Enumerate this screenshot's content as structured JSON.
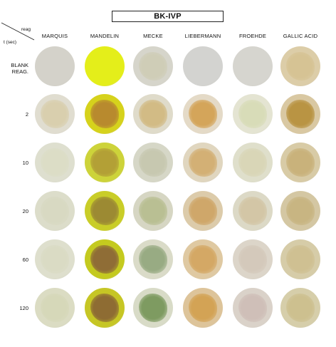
{
  "title": "BK-IVP",
  "corner": {
    "reagent_label": "reag",
    "time_label": "t (sec)"
  },
  "columns": [
    "MARQUIS",
    "MANDELIN",
    "MECKE",
    "LIEBERMANN",
    "FROEHDE",
    "GALLIC ACID"
  ],
  "rows": [
    {
      "label_lines": [
        "BLANK",
        "REAG."
      ]
    },
    {
      "label_lines": [
        "2"
      ]
    },
    {
      "label_lines": [
        "10"
      ]
    },
    {
      "label_lines": [
        "20"
      ]
    },
    {
      "label_lines": [
        "60"
      ]
    },
    {
      "label_lines": [
        "120"
      ]
    }
  ],
  "wells": [
    [
      {
        "base": "#d4d2ca",
        "spot": ""
      },
      {
        "base": "#e4ee1a",
        "spot": ""
      },
      {
        "base": "#d6d5cb",
        "spot": "#cfcdb7"
      },
      {
        "base": "#d3d3d0",
        "spot": ""
      },
      {
        "base": "#d6d5cf",
        "spot": ""
      },
      {
        "base": "#dccda8",
        "spot": "#d6c394"
      }
    ],
    [
      {
        "base": "#e0ddd0",
        "spot": "#d9cfae"
      },
      {
        "base": "#d6d21c",
        "spot": "#b88a2e"
      },
      {
        "base": "#dfdbca",
        "spot": "#d2bb85"
      },
      {
        "base": "#e4dac7",
        "spot": "#d4a55a"
      },
      {
        "base": "#e4e4d2",
        "spot": "#d8dcb8"
      },
      {
        "base": "#d9c8a2",
        "spot": "#b99443"
      }
    ],
    [
      {
        "base": "#dedfcf",
        "spot": "#dcddc6"
      },
      {
        "base": "#cdd33a",
        "spot": "#b3a036"
      },
      {
        "base": "#d6d7c7",
        "spot": "#c7c8b0"
      },
      {
        "base": "#e0d6bf",
        "spot": "#d3b075"
      },
      {
        "base": "#dfdfcb",
        "spot": "#d9d6b7"
      },
      {
        "base": "#d8cba6",
        "spot": "#c9b27b"
      }
    ],
    [
      {
        "base": "#dcddca",
        "spot": "#d8d9c2"
      },
      {
        "base": "#c9cd28",
        "spot": "#9c8a33"
      },
      {
        "base": "#d6d6c3",
        "spot": "#b9bf93"
      },
      {
        "base": "#dccbaa",
        "spot": "#cfa76a"
      },
      {
        "base": "#dcd9c6",
        "spot": "#d3c6a6"
      },
      {
        "base": "#d4c7a3",
        "spot": "#c8b582"
      }
    ],
    [
      {
        "base": "#dedfcd",
        "spot": "#dadbc4"
      },
      {
        "base": "#c4ca1f",
        "spot": "#8f6d36"
      },
      {
        "base": "#dadbc8",
        "spot": "#98ab83"
      },
      {
        "base": "#dfc9a2",
        "spot": "#d4a865"
      },
      {
        "base": "#dcd5c9",
        "spot": "#d4c9bb"
      },
      {
        "base": "#d6cca8",
        "spot": "#cfc092"
      }
    ],
    [
      {
        "base": "#dbdcc3",
        "spot": "#d6d8b9"
      },
      {
        "base": "#c6c625",
        "spot": "#8e6c33"
      },
      {
        "base": "#d8dbc7",
        "spot": "#7e9b61"
      },
      {
        "base": "#ddc49a",
        "spot": "#d3a355"
      },
      {
        "base": "#dad2c9",
        "spot": "#cfbfb8"
      },
      {
        "base": "#d6ceaa",
        "spot": "#cdc08f"
      }
    ]
  ]
}
